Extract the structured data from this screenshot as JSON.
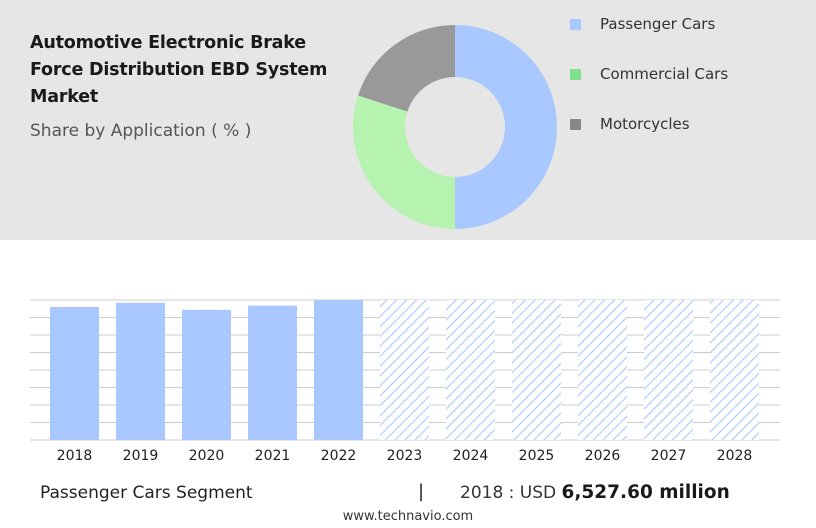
{
  "header": {
    "title": "Automotive Electronic Brake Force Distribution EBD System Market",
    "subtitle": "Share by Application ( % )"
  },
  "chart_data": [
    {
      "type": "pie",
      "style": "donut",
      "slices": [
        {
          "label": "Passenger Cars",
          "value": 50,
          "color": "#a9c8ff"
        },
        {
          "label": "Commercial Cars",
          "value": 30,
          "color": "#b6f2b0"
        },
        {
          "label": "Motorcycles",
          "value": 20,
          "color": "#999999"
        }
      ],
      "legend_colors": [
        "#a9c8ff",
        "#7ee08c",
        "#888888"
      ],
      "legend_position": "right"
    },
    {
      "type": "bar",
      "categories": [
        "2018",
        "2019",
        "2020",
        "2021",
        "2022",
        "2023",
        "2024",
        "2025",
        "2026",
        "2027",
        "2028"
      ],
      "values": [
        95,
        98,
        93,
        96,
        100,
        100,
        100,
        100,
        100,
        100,
        100
      ],
      "forecast_from": "2023",
      "ylim": [
        0,
        100
      ],
      "grid": true,
      "color": "#a9c8ff",
      "forecast_color": "#a9c8ff"
    }
  ],
  "footer": {
    "segment": "Passenger Cars Segment",
    "separator": "|",
    "year_label": "2018 : USD",
    "value": "6,527.60 million",
    "source": "www.technavio.com"
  }
}
